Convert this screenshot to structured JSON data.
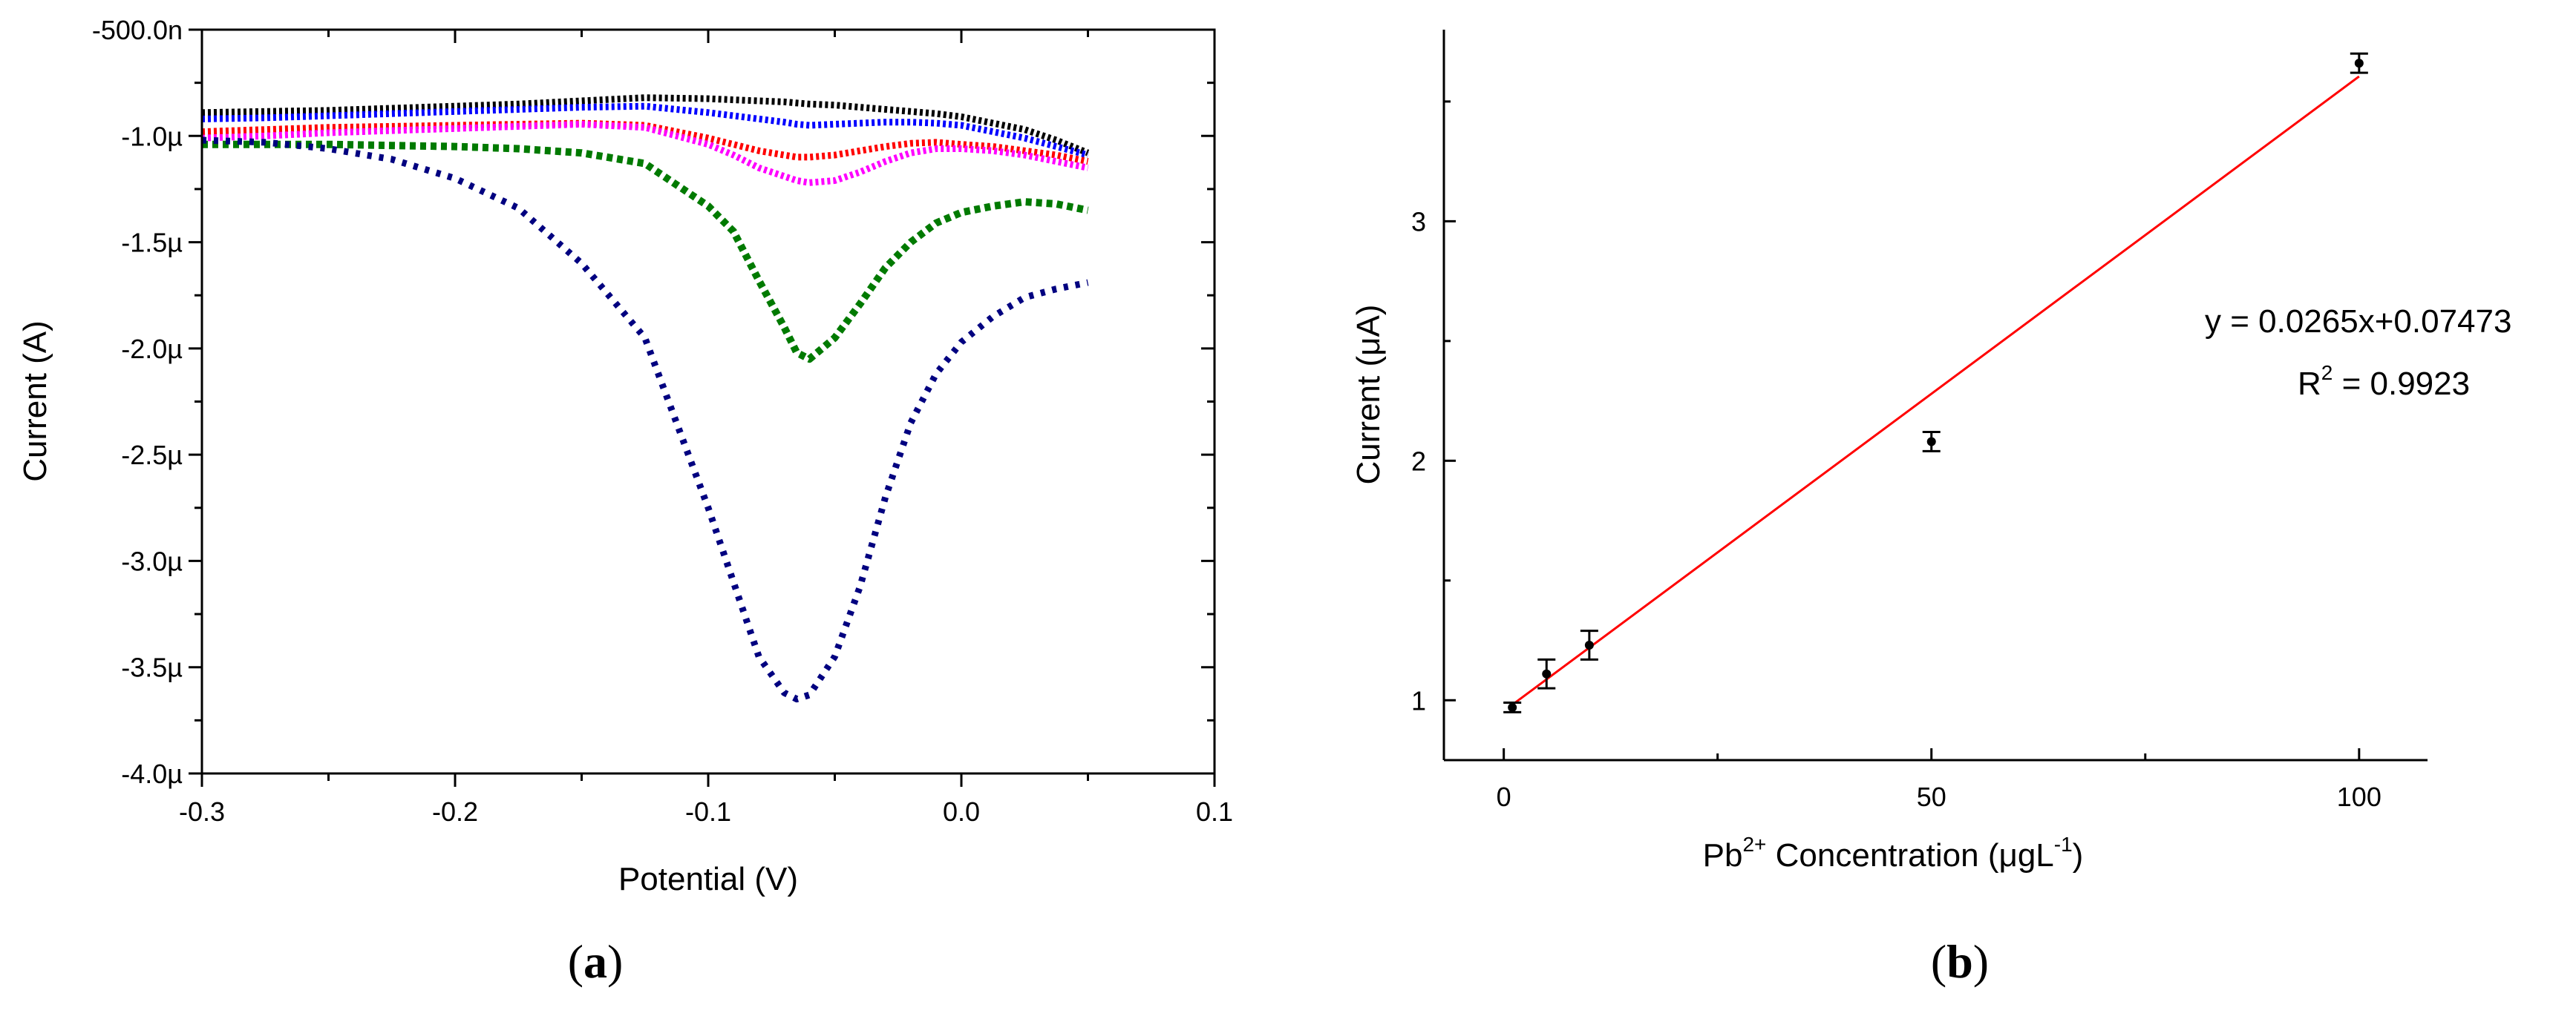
{
  "chart_data": [
    {
      "panel": "(a)",
      "type": "line",
      "xlabel": "Potential (V)",
      "ylabel": "Current (A)",
      "xlim": [
        -0.3,
        0.1
      ],
      "ylim": [
        -4e-06,
        -5e-07
      ],
      "x_ticks": [
        -0.3,
        -0.2,
        -0.1,
        0.0,
        0.1
      ],
      "x_tick_labels": [
        "-0.3",
        "-0.2",
        "-0.1",
        "0.0",
        "0.1"
      ],
      "y_ticks": [
        -5e-07,
        -1e-06,
        -1.5e-06,
        -2e-06,
        -2.5e-06,
        -3e-06,
        -3.5e-06,
        -4e-06
      ],
      "y_tick_labels": [
        "-500.0n",
        "-1.0µ",
        "-1.5µ",
        "-2.0µ",
        "-2.5µ",
        "-3.0µ",
        "-3.5µ",
        "-4.0µ"
      ],
      "x": [
        -0.3,
        -0.275,
        -0.25,
        -0.225,
        -0.2,
        -0.175,
        -0.15,
        -0.125,
        -0.1,
        -0.09,
        -0.08,
        -0.07,
        -0.065,
        -0.06,
        -0.05,
        -0.04,
        -0.03,
        -0.02,
        -0.01,
        0.0,
        0.0125,
        0.025,
        0.0375,
        0.05
      ],
      "series": [
        {
          "name": "black",
          "color": "#000000",
          "values": [
            -8.9e-07,
            -8.85e-07,
            -8.8e-07,
            -8.7e-07,
            -8.6e-07,
            -8.5e-07,
            -8.35e-07,
            -8.2e-07,
            -8.25e-07,
            -8.3e-07,
            -8.35e-07,
            -8.4e-07,
            -8.45e-07,
            -8.5e-07,
            -8.55e-07,
            -8.65e-07,
            -8.75e-07,
            -8.85e-07,
            -8.95e-07,
            -9.1e-07,
            -9.4e-07,
            -9.7e-07,
            -1.02e-06,
            -1.08e-06
          ]
        },
        {
          "name": "blue",
          "color": "#0000ff",
          "values": [
            -9.2e-07,
            -9.15e-07,
            -9.05e-07,
            -8.95e-07,
            -8.85e-07,
            -8.75e-07,
            -8.65e-07,
            -8.6e-07,
            -8.9e-07,
            -9.05e-07,
            -9.2e-07,
            -9.35e-07,
            -9.45e-07,
            -9.5e-07,
            -9.45e-07,
            -9.4e-07,
            -9.35e-07,
            -9.35e-07,
            -9.4e-07,
            -9.5e-07,
            -9.8e-07,
            -1.01e-06,
            -1.05e-06,
            -1.09e-06
          ]
        },
        {
          "name": "red",
          "color": "#ff0000",
          "values": [
            -9.8e-07,
            -9.7e-07,
            -9.6e-07,
            -9.55e-07,
            -9.5e-07,
            -9.45e-07,
            -9.4e-07,
            -9.5e-07,
            -1.01e-06,
            -1.04e-06,
            -1.07e-06,
            -1.09e-06,
            -1.1e-06,
            -1.1e-06,
            -1.09e-06,
            -1.07e-06,
            -1.05e-06,
            -1.035e-06,
            -1.03e-06,
            -1.04e-06,
            -1.05e-06,
            -1.07e-06,
            -1.09e-06,
            -1.12e-06
          ]
        },
        {
          "name": "magenta",
          "color": "#ff00ff",
          "values": [
            -1.01e-06,
            -1e-06,
            -9.85e-07,
            -9.75e-07,
            -9.65e-07,
            -9.55e-07,
            -9.45e-07,
            -9.6e-07,
            -1.04e-06,
            -1.09e-06,
            -1.15e-06,
            -1.19e-06,
            -1.21e-06,
            -1.22e-06,
            -1.21e-06,
            -1.17e-06,
            -1.12e-06,
            -1.08e-06,
            -1.06e-06,
            -1.06e-06,
            -1.07e-06,
            -1.09e-06,
            -1.12e-06,
            -1.15e-06
          ]
        },
        {
          "name": "green",
          "color": "#007a00",
          "values": [
            -1.04e-06,
            -1.04e-06,
            -1.04e-06,
            -1.045e-06,
            -1.05e-06,
            -1.06e-06,
            -1.08e-06,
            -1.13e-06,
            -1.33e-06,
            -1.45e-06,
            -1.68e-06,
            -1.9e-06,
            -2.02e-06,
            -2.05e-06,
            -1.95e-06,
            -1.79e-06,
            -1.62e-06,
            -1.5e-06,
            -1.41e-06,
            -1.36e-06,
            -1.33e-06,
            -1.31e-06,
            -1.32e-06,
            -1.35e-06
          ]
        },
        {
          "name": "navy",
          "color": "#000080",
          "values": [
            -1.02e-06,
            -1.03e-06,
            -1.06e-06,
            -1.11e-06,
            -1.2e-06,
            -1.34e-06,
            -1.6e-06,
            -1.95e-06,
            -2.75e-06,
            -3.1e-06,
            -3.45e-06,
            -3.62e-06,
            -3.65e-06,
            -3.63e-06,
            -3.45e-06,
            -3.12e-06,
            -2.7e-06,
            -2.35e-06,
            -2.12e-06,
            -1.97e-06,
            -1.85e-06,
            -1.76e-06,
            -1.72e-06,
            -1.69e-06
          ]
        }
      ]
    },
    {
      "panel": "(b)",
      "type": "scatter",
      "xlabel_main": "Pb",
      "xlabel_sup": "2+",
      "xlabel_rest": " Concentration (μgL",
      "xlabel_sup2": "-1",
      "xlabel_end": ")",
      "ylabel": "Current (μA)",
      "xlim": [
        -7,
        108
      ],
      "ylim": [
        0.75,
        3.8
      ],
      "x_ticks": [
        0,
        50,
        100
      ],
      "x_tick_labels": [
        "0",
        "50",
        "100"
      ],
      "y_ticks": [
        1,
        2,
        3
      ],
      "y_tick_labels": [
        "1",
        "2",
        "3"
      ],
      "points": {
        "x": [
          1,
          5,
          10,
          50,
          100
        ],
        "y": [
          0.97,
          1.11,
          1.23,
          2.08,
          3.66
        ],
        "error": [
          0.02,
          0.06,
          0.06,
          0.04,
          0.04
        ]
      },
      "fit": {
        "slope": 0.0265,
        "intercept": 0.07473,
        "x_range": [
          1,
          100
        ],
        "line_color": "#ff0000",
        "equation_text": "y = 0.0265x+0.07473",
        "r2_label": "R",
        "r2_sup": "2",
        "r2_value": "  = 0.9923"
      }
    }
  ],
  "captions": {
    "a": "a",
    "b": "b"
  }
}
